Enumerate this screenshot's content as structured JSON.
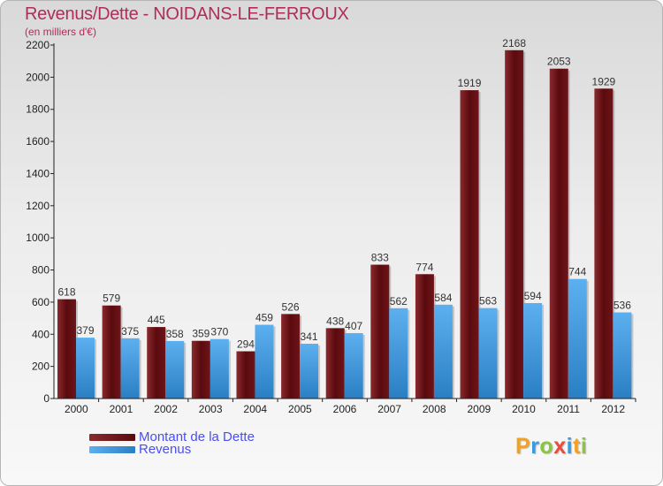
{
  "title": "Revenus/Dette - NOIDANS-LE-FERROUX",
  "subtitle": "(en milliers d'€)",
  "colors": {
    "dette": "#6b0f14",
    "revenus": "#3c95dc",
    "title": "#b02c5c",
    "legend_text": "#4a4ef0"
  },
  "legend": {
    "items": [
      {
        "label": "Montant de la Dette",
        "color": "#6b0f14"
      },
      {
        "label": "Revenus",
        "color": "#3c95dc"
      }
    ]
  },
  "logo": {
    "letters": [
      {
        "char": "P",
        "color": "#f2a21d"
      },
      {
        "char": "r",
        "color": "#3a9bd9"
      },
      {
        "char": "o",
        "color": "#8bc53f"
      },
      {
        "char": "x",
        "color": "#e94b3c"
      },
      {
        "char": "i",
        "color": "#3a9bd9"
      },
      {
        "char": "t",
        "color": "#f2a21d"
      },
      {
        "char": "i",
        "color": "#8bc53f"
      }
    ]
  },
  "chart_data": {
    "type": "bar",
    "categories": [
      "2000",
      "2001",
      "2002",
      "2003",
      "2004",
      "2005",
      "2006",
      "2007",
      "2008",
      "2009",
      "2010",
      "2011",
      "2012"
    ],
    "series": [
      {
        "name": "Montant de la Dette",
        "values": [
          618,
          579,
          445,
          359,
          294,
          526,
          438,
          833,
          774,
          1919,
          2168,
          2053,
          1929
        ]
      },
      {
        "name": "Revenus",
        "values": [
          379,
          375,
          358,
          370,
          459,
          341,
          407,
          562,
          584,
          563,
          594,
          744,
          536
        ]
      }
    ],
    "ylim": [
      0,
      2200
    ],
    "yticks": [
      0,
      200,
      400,
      600,
      800,
      1000,
      1200,
      1400,
      1600,
      1800,
      2000,
      2200
    ],
    "grid": false,
    "legend_position": "bottom-left"
  }
}
